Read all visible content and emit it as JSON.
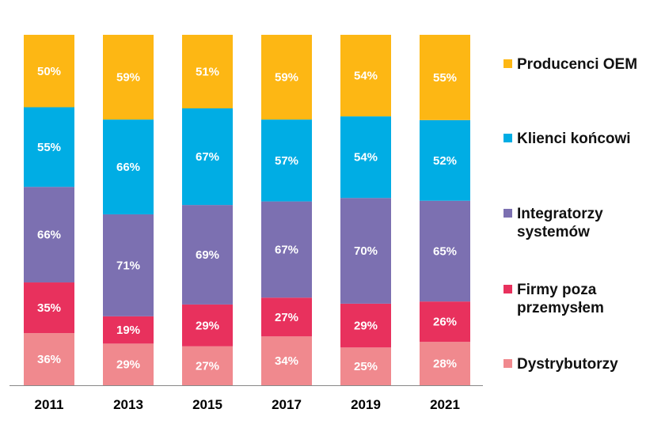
{
  "chart_data": {
    "type": "bar",
    "stacked": true,
    "categories": [
      "2011",
      "2013",
      "2015",
      "2017",
      "2019",
      "2021"
    ],
    "series": [
      {
        "name": "Dystrybutorzy",
        "color": "#F0898E",
        "values": [
          36,
          29,
          27,
          34,
          25,
          28
        ]
      },
      {
        "name": "Firmy poza przemysłem",
        "color": "#E8315D",
        "values": [
          35,
          19,
          29,
          27,
          29,
          26
        ]
      },
      {
        "name": "Integratorzy systemów",
        "color": "#7C70B1",
        "values": [
          66,
          71,
          69,
          67,
          70,
          65
        ]
      },
      {
        "name": "Klienci końcowi",
        "color": "#00ADE4",
        "values": [
          55,
          66,
          67,
          57,
          54,
          52
        ]
      },
      {
        "name": "Producenci OEM",
        "color": "#FDB714",
        "values": [
          50,
          59,
          51,
          59,
          54,
          55
        ]
      }
    ],
    "value_suffix": "%",
    "title": "",
    "xlabel": "",
    "ylabel": "",
    "grid": false,
    "legend_position": "right",
    "legend_order": [
      "Producenci OEM",
      "Klienci końcowi",
      "Integratorzy systemów",
      "Firmy poza przemysłem",
      "Dystrybutorzy"
    ]
  },
  "legend": {
    "items": [
      {
        "label": "Producenci OEM",
        "color": "#FDB714"
      },
      {
        "label": "Klienci końcowi",
        "color": "#00ADE4"
      },
      {
        "label": "Integratorzy\nsystemów",
        "color": "#7C70B1"
      },
      {
        "label": "Firmy poza\nprzemysłem",
        "color": "#E8315D"
      },
      {
        "label": "Dystrybutorzy",
        "color": "#F0898E"
      }
    ]
  }
}
